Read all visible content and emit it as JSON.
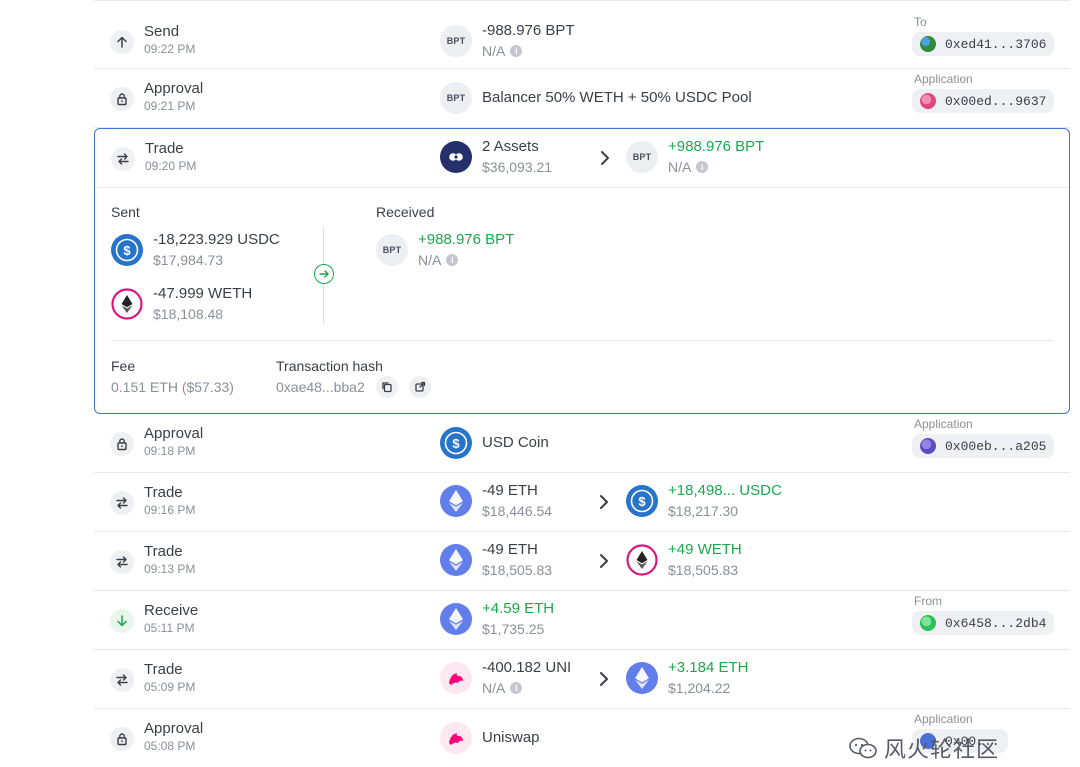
{
  "transactions": [
    {
      "type": "Send",
      "time": "09:22 PM",
      "asset_amount": "-988.976 BPT",
      "asset_value": "N/A",
      "asset_icon": "BPT",
      "party_label": "To",
      "party_address": "0xed41...3706",
      "party_color": "#2e8b3a"
    },
    {
      "type": "Approval",
      "time": "09:21 PM",
      "asset_name": "Balancer 50% WETH + 50% USDC Pool",
      "asset_icon": "BPT",
      "party_label": "Application",
      "party_address": "0x00ed...9637",
      "party_color": "#e0457b"
    },
    {
      "type": "Trade",
      "time": "09:20 PM",
      "from_amount": "2 Assets",
      "from_value": "$36,093.21",
      "to_amount": "+988.976 BPT",
      "to_value": "N/A",
      "to_icon": "BPT"
    },
    {
      "type": "Approval",
      "time": "09:18 PM",
      "asset_name": "USD Coin",
      "party_label": "Application",
      "party_address": "0x00eb...a205",
      "party_color": "#5b4cc4"
    },
    {
      "type": "Trade",
      "time": "09:16 PM",
      "from_amount": "-49 ETH",
      "from_value": "$18,446.54",
      "to_amount": "+18,498... USDC",
      "to_value": "$18,217.30"
    },
    {
      "type": "Trade",
      "time": "09:13 PM",
      "from_amount": "-49 ETH",
      "from_value": "$18,505.83",
      "to_amount": "+49 WETH",
      "to_value": "$18,505.83"
    },
    {
      "type": "Receive",
      "time": "05:11 PM",
      "asset_amount": "+4.59 ETH",
      "asset_value": "$1,735.25",
      "party_label": "From",
      "party_address": "0x6458...2db4",
      "party_color": "#2fbf5a"
    },
    {
      "type": "Trade",
      "time": "05:09 PM",
      "from_amount": "-400.182 UNI",
      "from_value": "N/A",
      "to_amount": "+3.184 ETH",
      "to_value": "$1,204.22"
    },
    {
      "type": "Approval",
      "time": "05:08 PM",
      "asset_name": "Uniswap",
      "party_label": "Application",
      "party_address": "0x00..."
    }
  ],
  "expanded": {
    "sent_title": "Sent",
    "received_title": "Received",
    "sent": [
      {
        "amount": "-18,223.929 USDC",
        "value": "$17,984.73"
      },
      {
        "amount": "-47.999 WETH",
        "value": "$18,108.48"
      }
    ],
    "received": [
      {
        "amount": "+988.976 BPT",
        "value": "N/A",
        "icon": "BPT"
      }
    ],
    "fee_title": "Fee",
    "fee_value": "0.151 ETH ($57.33)",
    "hash_title": "Transaction hash",
    "hash_value": "0xae48...bba2"
  },
  "watermark": "风火轮社区",
  "colors": {
    "accent": "#3a7bd5",
    "positive": "#1ba94c",
    "usdc": "#2775ca",
    "eth": "#627eea",
    "weth": "#d7197f",
    "uni": "#ff007a"
  }
}
